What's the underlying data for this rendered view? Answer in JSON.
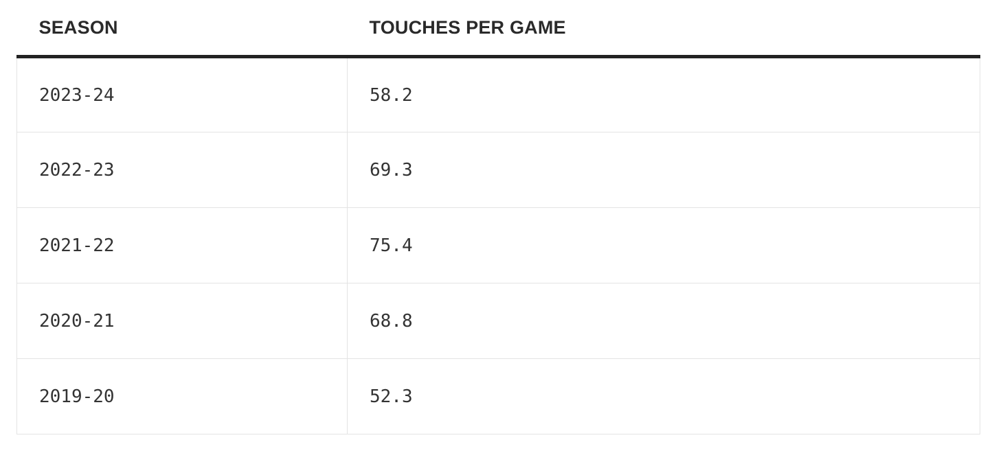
{
  "chart_data": {
    "type": "table",
    "columns": [
      "SEASON",
      "TOUCHES PER GAME"
    ],
    "rows": [
      {
        "season": "2023-24",
        "touches": "58.2"
      },
      {
        "season": "2022-23",
        "touches": "69.3"
      },
      {
        "season": "2021-22",
        "touches": "75.4"
      },
      {
        "season": "2020-21",
        "touches": "68.8"
      },
      {
        "season": "2019-20",
        "touches": "52.3"
      }
    ],
    "categories": [
      "2023-24",
      "2022-23",
      "2021-22",
      "2020-21",
      "2019-20"
    ],
    "values": [
      58.2,
      69.3,
      75.4,
      68.8,
      52.3
    ]
  }
}
